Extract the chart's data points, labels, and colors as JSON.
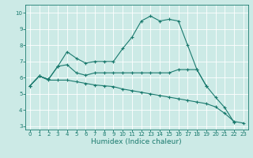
{
  "xlabel": "Humidex (Indice chaleur)",
  "xlim": [
    -0.5,
    23.5
  ],
  "ylim": [
    2.8,
    10.5
  ],
  "yticks": [
    3,
    4,
    5,
    6,
    7,
    8,
    9,
    10
  ],
  "xticks": [
    0,
    1,
    2,
    3,
    4,
    5,
    6,
    7,
    8,
    9,
    10,
    11,
    12,
    13,
    14,
    15,
    16,
    17,
    18,
    19,
    20,
    21,
    22,
    23
  ],
  "bg_color": "#cceae6",
  "line_color": "#1a7a6e",
  "grid_color": "#ffffff",
  "series": [
    {
      "x": [
        0,
        1,
        2,
        3,
        4,
        5,
        6,
        7,
        8,
        9,
        10,
        11,
        12,
        13,
        14,
        15,
        16,
        17,
        18,
        19,
        20,
        21,
        22
      ],
      "y": [
        5.5,
        6.1,
        5.9,
        6.7,
        7.6,
        7.2,
        6.9,
        7.0,
        7.0,
        7.0,
        7.8,
        8.5,
        9.5,
        9.8,
        9.5,
        9.6,
        9.5,
        8.0,
        6.5,
        5.5,
        4.8,
        4.15,
        3.25
      ]
    },
    {
      "x": [
        0,
        1,
        2,
        3,
        4,
        5,
        6,
        7,
        8,
        9,
        10,
        11,
        12,
        13,
        14,
        15,
        16,
        17,
        18,
        19
      ],
      "y": [
        5.5,
        6.1,
        5.9,
        6.7,
        6.8,
        6.3,
        6.15,
        6.3,
        6.3,
        6.3,
        6.3,
        6.3,
        6.3,
        6.3,
        6.3,
        6.3,
        6.5,
        6.5,
        6.5,
        5.5
      ]
    },
    {
      "x": [
        0,
        1,
        2,
        3,
        4,
        5,
        6,
        7,
        8,
        9,
        10,
        11,
        12,
        13,
        14,
        15,
        16,
        17,
        18,
        19,
        20,
        21,
        22,
        23
      ],
      "y": [
        5.5,
        6.1,
        5.85,
        5.85,
        5.85,
        5.75,
        5.65,
        5.55,
        5.5,
        5.45,
        5.3,
        5.2,
        5.1,
        5.0,
        4.9,
        4.8,
        4.7,
        4.6,
        4.5,
        4.4,
        4.2,
        3.8,
        3.3,
        3.2
      ]
    }
  ]
}
